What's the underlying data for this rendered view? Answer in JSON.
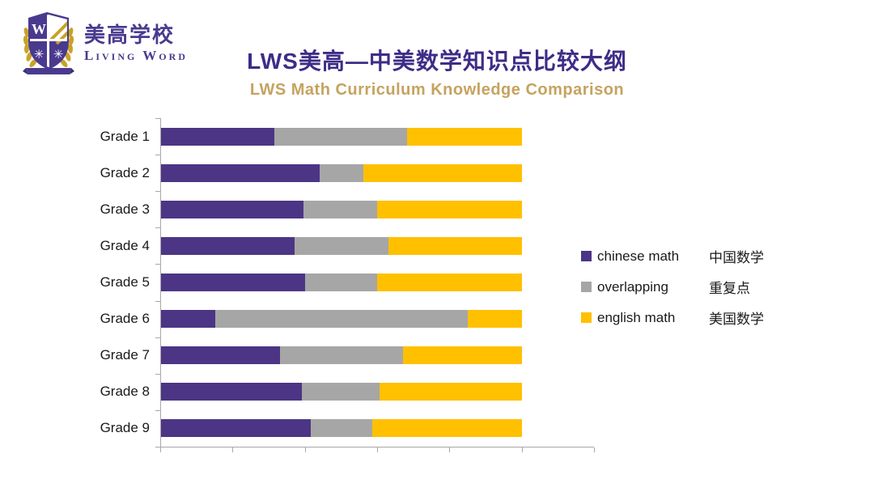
{
  "header": {
    "logo": {
      "icon": "shield-crest-icon",
      "school_name_zh": "美高学校",
      "school_name_en": "Living Word"
    },
    "title_zh": "LWS美高—中美数学知识点比较大纲",
    "title_en": "LWS Math Curriculum Knowledge Comparison"
  },
  "colors": {
    "brand_purple": "#4A3A8F",
    "title_purple": "#3E2C87",
    "subtitle_gold": "#C5A35F",
    "axis_gray": "#A8A8A8",
    "laurel_gold": "#C9A227"
  },
  "chart_data": {
    "type": "bar",
    "orientation": "horizontal",
    "stacked": true,
    "grid": false,
    "legend_position": "right",
    "categories": [
      "Grade 1",
      "Grade 2",
      "Grade 3",
      "Grade 4",
      "Grade 5",
      "Grade 6",
      "Grade 7",
      "Grade 8",
      "Grade 9"
    ],
    "series": [
      {
        "name": "chinese math",
        "name_zh": "中国数学",
        "color": "#4C3585",
        "values": [
          31.5,
          44,
          39.5,
          37,
          40,
          15,
          33,
          39,
          41.5
        ]
      },
      {
        "name": "overlapping",
        "name_zh": "重复点",
        "color": "#A6A6A6",
        "values": [
          36.7,
          12,
          20.5,
          26,
          20,
          70,
          34,
          21.5,
          17
        ]
      },
      {
        "name": "english math",
        "name_zh": "美国数学",
        "color": "#FFC000",
        "values": [
          31.8,
          44,
          40,
          37,
          40,
          15,
          33,
          39.5,
          41.5
        ]
      }
    ],
    "x_axis": {
      "min": 0,
      "max": 120,
      "tick_interval": 20,
      "tick_labels_visible": false
    },
    "bar_total_percent": 100
  }
}
